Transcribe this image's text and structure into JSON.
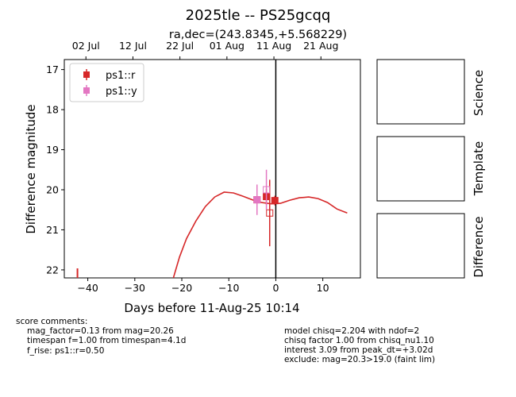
{
  "title": "2025tle -- PS25gcqq",
  "subtitle": "ra,dec=(243.8345,+5.568229)",
  "chart_data": {
    "type": "scatter",
    "xlabel": "Days before 11-Aug-25 10:14",
    "ylabel": "Difference magnitude",
    "xlim": [
      -45,
      18
    ],
    "ylim": [
      22.2,
      16.75
    ],
    "y_inverted": true,
    "xticks": [
      -40,
      -30,
      -20,
      -10,
      0,
      10
    ],
    "yticks": [
      17,
      18,
      19,
      20,
      21,
      22
    ],
    "top_axis_ticks": [
      {
        "x": -40.4,
        "label": "02 Jul"
      },
      {
        "x": -30.4,
        "label": "12 Jul"
      },
      {
        "x": -20.4,
        "label": "22 Jul"
      },
      {
        "x": -10.4,
        "label": "01 Aug"
      },
      {
        "x": -0.4,
        "label": "11 Aug"
      },
      {
        "x": 9.6,
        "label": "21 Aug"
      }
    ],
    "vertical_line_x": 0,
    "legend_position": "upper-left",
    "series": [
      {
        "name": "ps1::r",
        "color": "#d62728",
        "marker": "square-filled",
        "points": [
          {
            "x": -4.0,
            "y": 20.25,
            "err": 0.12
          },
          {
            "x": -2.0,
            "y": 20.17,
            "err": 0.2
          },
          {
            "x": -0.2,
            "y": 20.27,
            "err": 0.12
          }
        ]
      },
      {
        "name": "ps1::r upper limits",
        "color": "#d62728",
        "marker": "square-open",
        "points": [
          {
            "x": -1.3,
            "y": 20.58,
            "err": 0.83
          }
        ]
      },
      {
        "name": "ps1::y",
        "color": "#e377c2",
        "marker": "square-filled",
        "points": [
          {
            "x": -4.0,
            "y": 20.25,
            "err": 0.38
          }
        ]
      },
      {
        "name": "ps1::y open",
        "color": "#e377c2",
        "marker": "square-open",
        "points": [
          {
            "x": -2.0,
            "y": 20.0,
            "err": 0.5
          }
        ]
      }
    ],
    "offscreen_limit_marker": {
      "x": -42.2,
      "color": "#d62728"
    },
    "model_curve": {
      "color": "#d62728",
      "points": [
        [
          -21.8,
          22.2
        ],
        [
          -20.5,
          21.68
        ],
        [
          -19,
          21.22
        ],
        [
          -17,
          20.78
        ],
        [
          -15,
          20.42
        ],
        [
          -13,
          20.18
        ],
        [
          -11,
          20.06
        ],
        [
          -9,
          20.08
        ],
        [
          -7,
          20.16
        ],
        [
          -5,
          20.25
        ],
        [
          -3,
          20.32
        ],
        [
          -1,
          20.35
        ],
        [
          1,
          20.34
        ],
        [
          3,
          20.26
        ],
        [
          5,
          20.2
        ],
        [
          7,
          20.18
        ],
        [
          9,
          20.22
        ],
        [
          11,
          20.32
        ],
        [
          13,
          20.48
        ],
        [
          15.2,
          20.58
        ]
      ]
    }
  },
  "panels": [
    {
      "label": "Science"
    },
    {
      "label": "Template"
    },
    {
      "label": "Difference"
    }
  ],
  "comments_left": {
    "header": "score comments:",
    "lines": [
      "mag_factor=0.13 from mag=20.26",
      "timespan f=1.00 from timespan=4.1d",
      "f_rise: ps1::r=0.50"
    ]
  },
  "comments_right": {
    "lines": [
      "model chisq=2.204 with ndof=2",
      "chisq factor 1.00 from chisq_nu1.10",
      "interest 3.09 from peak_dt=+3.02d",
      "exclude: mag=20.3>19.0 (faint lim)"
    ]
  }
}
